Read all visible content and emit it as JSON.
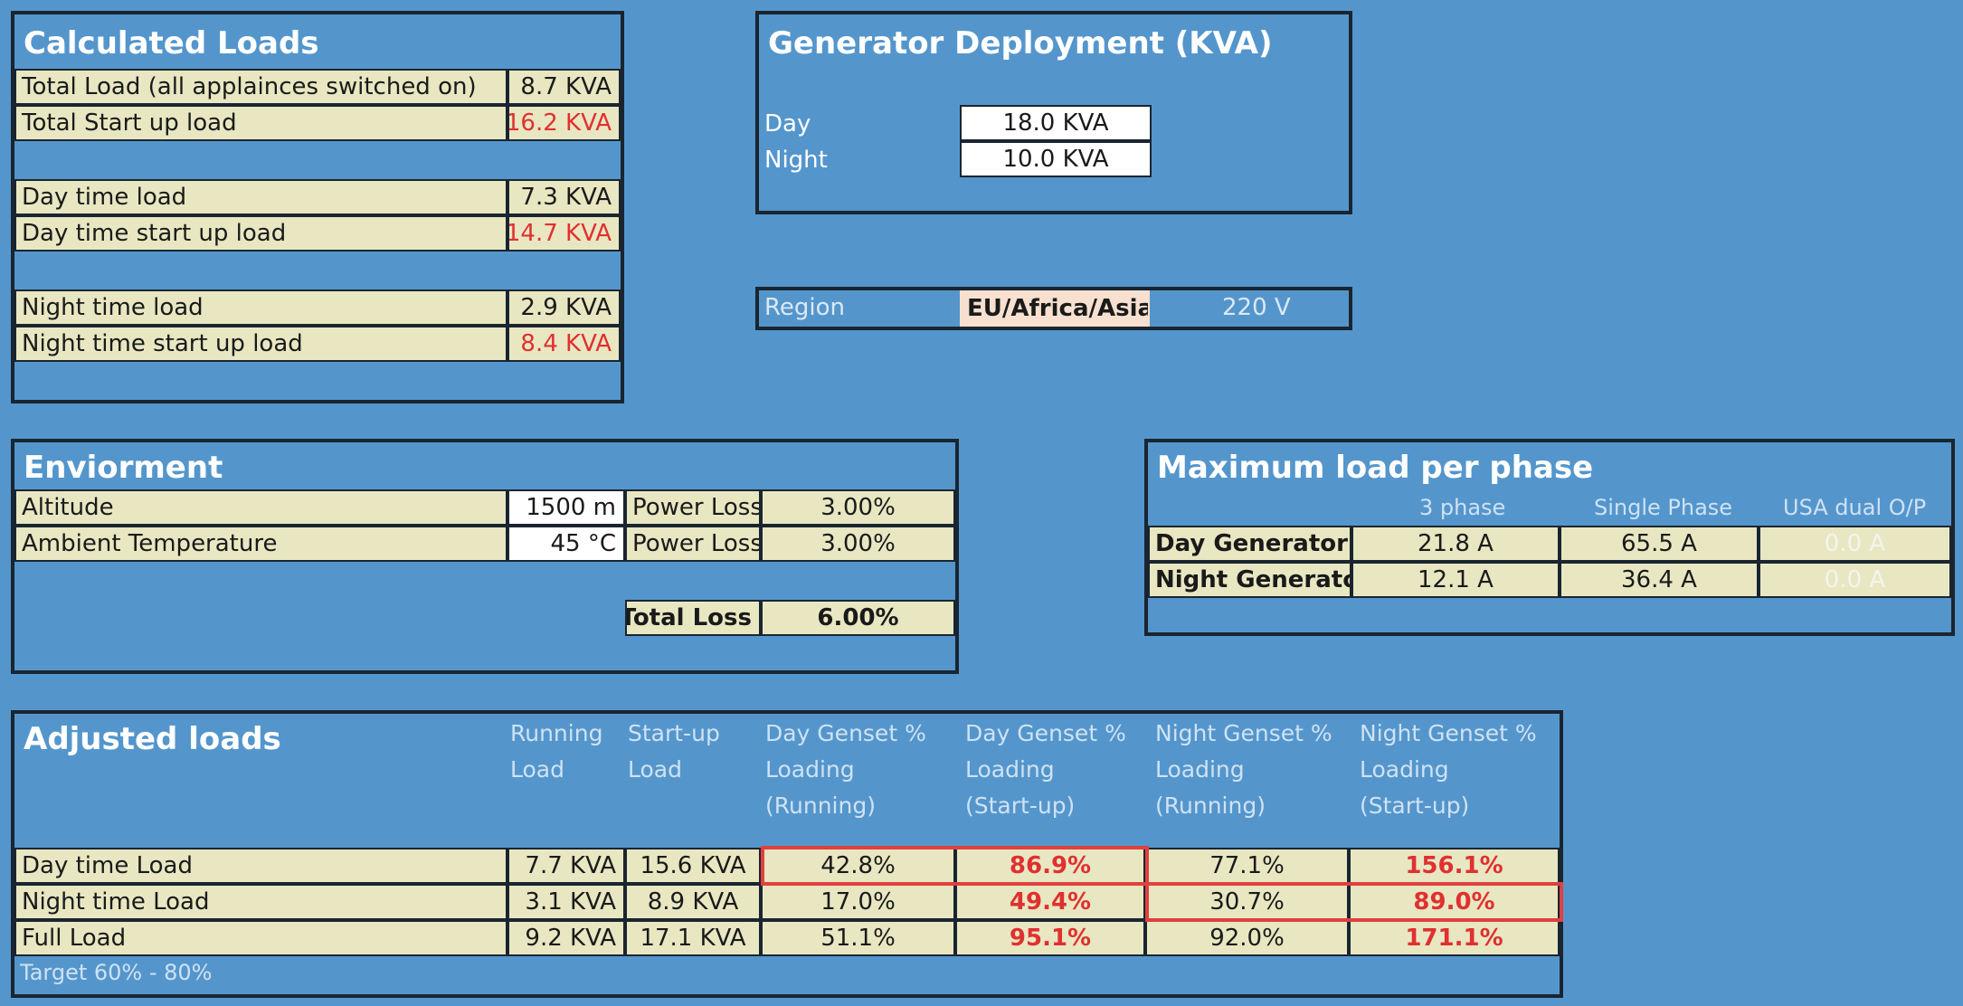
{
  "calculated_loads": {
    "title": "Calculated Loads",
    "rows": [
      {
        "label": "Total Load (all applainces  switched on)",
        "value": "8.7 KVA"
      },
      {
        "label": "Total Start up load",
        "value": "16.2 KVA"
      },
      {
        "label": "Day time load",
        "value": "7.3 KVA"
      },
      {
        "label": "Day time start up load",
        "value": "14.7 KVA"
      },
      {
        "label": "Night time load",
        "value": "2.9 KVA"
      },
      {
        "label": "Night time start up load",
        "value": "8.4 KVA"
      }
    ]
  },
  "generator_deployment": {
    "title": "Generator Deployment (KVA)",
    "day_label": "Day",
    "day_value": "18.0 KVA",
    "night_label": "Night",
    "night_value": "10.0 KVA"
  },
  "region": {
    "label": "Region",
    "value": "EU/Africa/Asia",
    "voltage": "220 V"
  },
  "environment": {
    "title": "Enviorment",
    "altitude_label": "Altitude",
    "altitude_value": "1500 m",
    "temperature_label": "Ambient Temperature",
    "temperature_value": "45 °C",
    "power_loss_label": "Power Loss",
    "altitude_loss": "3.00%",
    "temperature_loss": "3.00%",
    "total_loss_label": "Total Loss",
    "total_loss": "6.00%"
  },
  "max_load_per_phase": {
    "title": "Maximum load per phase",
    "columns": [
      "3 phase",
      "Single Phase",
      "USA  dual O/P"
    ],
    "rows": [
      {
        "label": "Day Generator",
        "values": [
          "21.8 A",
          "65.5 A",
          "0.0 A"
        ]
      },
      {
        "label": "Night Generator",
        "values": [
          "12.1 A",
          "36.4 A",
          "0.0 A"
        ]
      }
    ]
  },
  "adjusted_loads": {
    "title": "Adjusted loads",
    "headers": [
      "Running\nLoad",
      "Start-up\nLoad",
      "Day  Genset %\nLoading\n(Running)",
      "Day  Genset %\nLoading\n(Start-up)",
      "Night  Genset %\nLoading\n(Running)",
      "Night  Genset %\nLoading\n(Start-up)"
    ],
    "rows": [
      {
        "label": "Day time Load",
        "values": [
          "7.7 KVA",
          "15.6 KVA",
          "42.8%",
          "86.9%",
          "77.1%",
          "156.1%"
        ]
      },
      {
        "label": "Night time Load",
        "values": [
          "3.1 KVA",
          "8.9 KVA",
          "17.0%",
          "49.4%",
          "30.7%",
          "89.0%"
        ]
      },
      {
        "label": "Full Load",
        "values": [
          "9.2 KVA",
          "17.1 KVA",
          "51.1%",
          "95.1%",
          "92.0%",
          "171.1%"
        ]
      }
    ],
    "target_note": "Target 60% - 80%"
  },
  "colors": {
    "background": "#5496cc",
    "cell": "#e8e7c2",
    "alert": "#e03030",
    "highlight_border": "#e04040"
  }
}
